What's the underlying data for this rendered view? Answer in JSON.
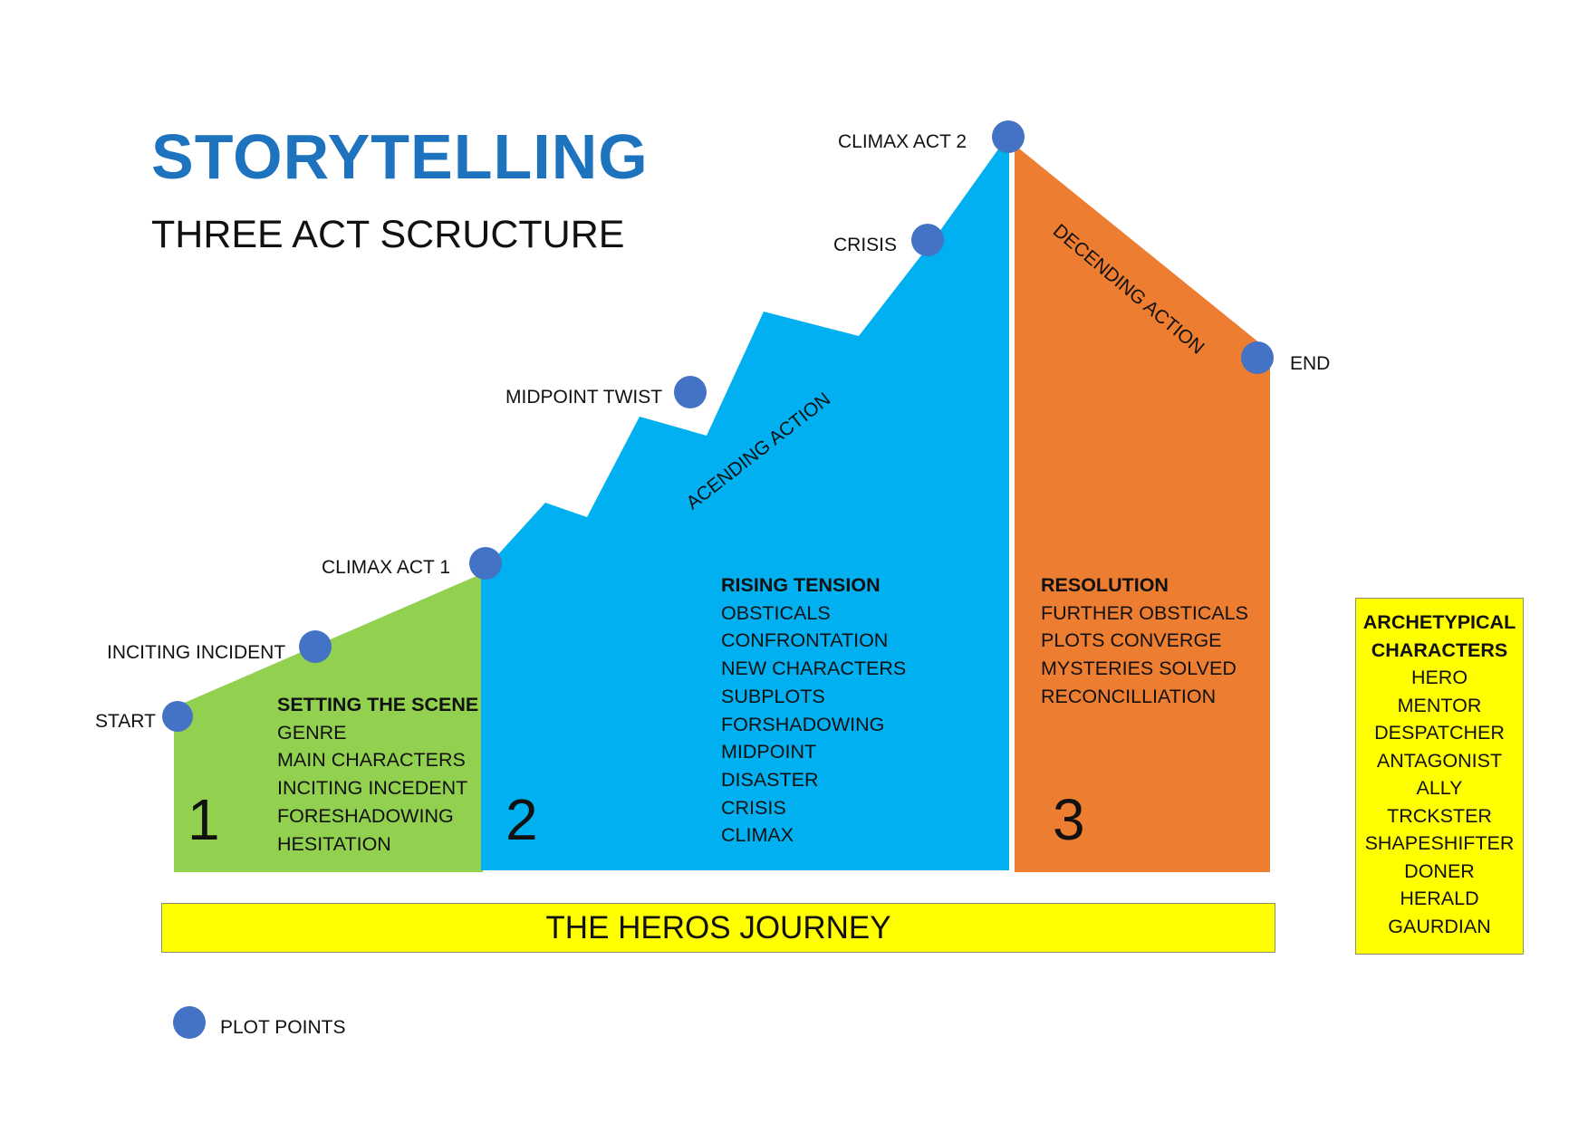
{
  "header": {
    "title": "STORYTELLING",
    "subtitle": "THREE ACT SCRUCTURE"
  },
  "colors": {
    "title": "#1e73be",
    "act1": "#92d050",
    "act2": "#00b0f0",
    "act3": "#ed7d31",
    "plot_point": "#4472c4",
    "highlight": "#ffff00"
  },
  "plot_points": {
    "start": "START",
    "inciting_incident": "INCITING INCIDENT",
    "climax_act_1": "CLIMAX ACT 1",
    "midpoint_twist": "MIDPOINT TWIST",
    "crisis": "CRISIS",
    "climax_act_2": "CLIMAX ACT 2",
    "end": "END"
  },
  "phases": {
    "ascending": "ACENDING ACTION",
    "descending": "DECENDING ACTION"
  },
  "acts": [
    {
      "number": "1",
      "heading": "SETTING THE SCENE",
      "items": [
        "GENRE",
        "MAIN CHARACTERS",
        "INCITING INCEDENT",
        "FORESHADOWING",
        "HESITATION"
      ]
    },
    {
      "number": "2",
      "heading": "RISING TENSION",
      "items": [
        "OBSTICALS",
        "CONFRONTATION",
        "NEW CHARACTERS",
        "SUBPLOTS",
        "FORSHADOWING",
        "MIDPOINT",
        "DISASTER",
        "CRISIS",
        "CLIMAX"
      ]
    },
    {
      "number": "3",
      "heading": "RESOLUTION",
      "items": [
        "FURTHER OBSTICALS",
        "PLOTS CONVERGE",
        "MYSTERIES SOLVED",
        "RECONCILLIATION"
      ]
    }
  ],
  "journey_bar": {
    "label": "THE HEROS JOURNEY"
  },
  "archetypes": {
    "heading_line1": "ARCHETYPICAL",
    "heading_line2": "CHARACTERS",
    "items": [
      "HERO",
      "MENTOR",
      "DESPATCHER",
      "ANTAGONIST",
      "ALLY",
      "TRCKSTER",
      "SHAPESHIFTER",
      "DONER",
      "HERALD",
      "GAURDIAN"
    ]
  },
  "legend": {
    "label": "PLOT POINTS"
  }
}
